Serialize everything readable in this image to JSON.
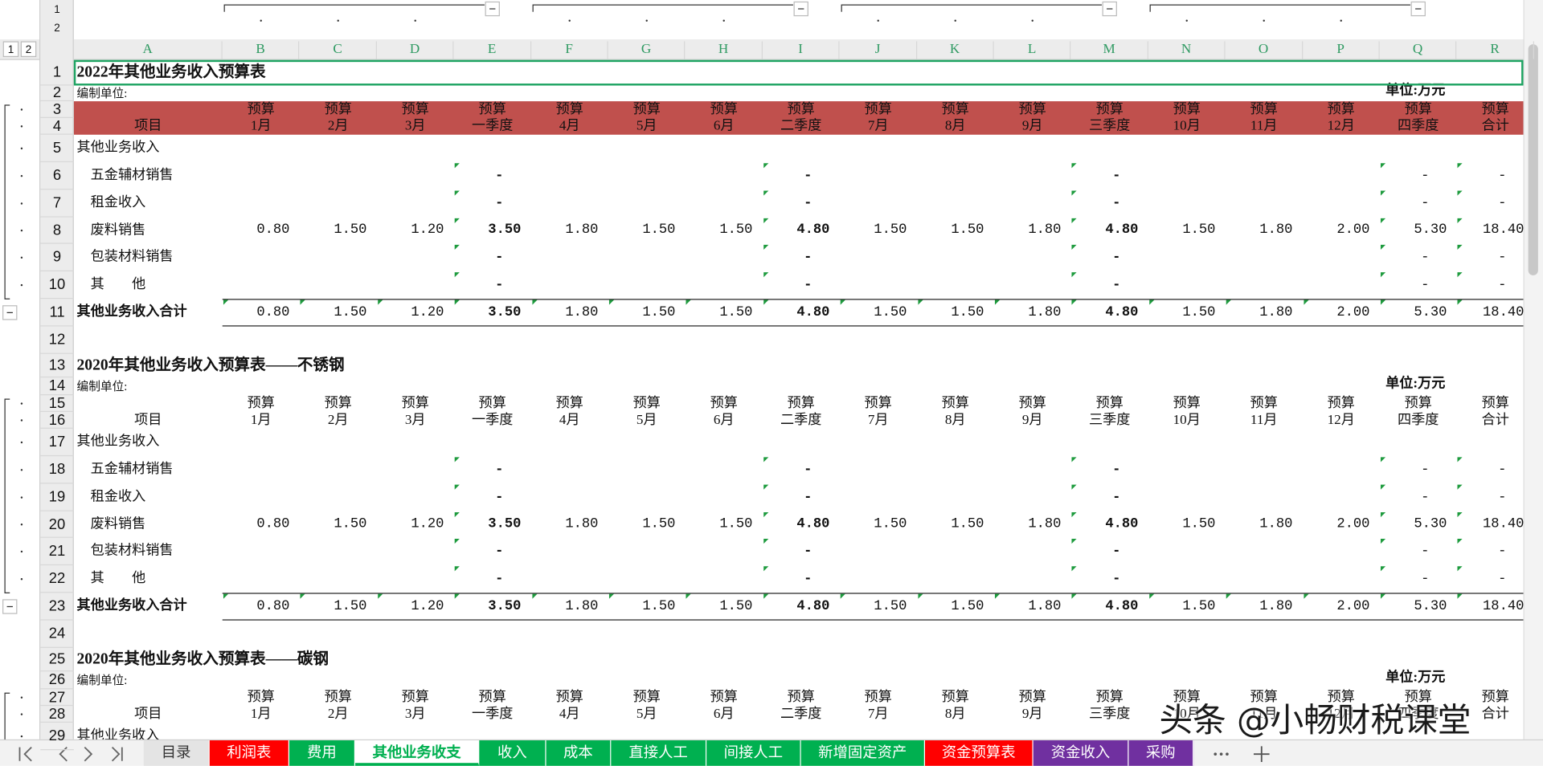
{
  "column_letters": [
    "A",
    "B",
    "C",
    "D",
    "E",
    "F",
    "G",
    "H",
    "I",
    "J",
    "K",
    "L",
    "M",
    "N",
    "O",
    "P",
    "Q",
    "R"
  ],
  "row_numbers": [
    1,
    2,
    3,
    4,
    5,
    6,
    7,
    8,
    9,
    10,
    11,
    12,
    13,
    14,
    15,
    16,
    17,
    18,
    19,
    20,
    21,
    22,
    23,
    24,
    25,
    26,
    27,
    28,
    29
  ],
  "outline_levels": [
    1,
    2
  ],
  "tables": [
    {
      "title": "2022年其他业务收入预算表",
      "unit_label": "编制单位:",
      "unit": "单位:万元",
      "header_fill": "#c0504d",
      "header_top": [
        "预算",
        "预算",
        "预算",
        "预算",
        "预算",
        "预算",
        "预算",
        "预算",
        "预算",
        "预算",
        "预算",
        "预算",
        "预算",
        "预算",
        "预算",
        "预算",
        "预算"
      ],
      "header_bottom": [
        "项目",
        "1月",
        "2月",
        "3月",
        "一季度",
        "4月",
        "5月",
        "6月",
        "二季度",
        "7月",
        "8月",
        "9月",
        "三季度",
        "10月",
        "11月",
        "12月",
        "四季度",
        "合计"
      ],
      "rows": [
        {
          "label": "其他业务收入"
        },
        {
          "label": "五金辅材销售",
          "cells": [
            null,
            null,
            null,
            "-",
            null,
            null,
            null,
            "-",
            null,
            null,
            null,
            "-",
            null,
            null,
            null,
            "-",
            "-"
          ]
        },
        {
          "label": "租金收入",
          "cells": [
            null,
            null,
            null,
            "-",
            null,
            null,
            null,
            "-",
            null,
            null,
            null,
            "-",
            null,
            null,
            null,
            "-",
            "-"
          ]
        },
        {
          "label": "废料销售",
          "cells": [
            "0.80",
            "1.50",
            "1.20",
            "3.50",
            "1.80",
            "1.50",
            "1.50",
            "4.80",
            "1.50",
            "1.50",
            "1.80",
            "4.80",
            "1.50",
            "1.80",
            "2.00",
            "5.30",
            "18.40"
          ]
        },
        {
          "label": "包装材料销售",
          "cells": [
            null,
            null,
            null,
            "-",
            null,
            null,
            null,
            "-",
            null,
            null,
            null,
            "-",
            null,
            null,
            null,
            "-",
            "-"
          ]
        },
        {
          "label": "其　　他",
          "cells": [
            null,
            null,
            null,
            "-",
            null,
            null,
            null,
            "-",
            null,
            null,
            null,
            "-",
            null,
            null,
            null,
            "-",
            "-"
          ]
        }
      ],
      "total": {
        "label": "其他业务收入合计",
        "cells": [
          "0.80",
          "1.50",
          "1.20",
          "3.50",
          "1.80",
          "1.50",
          "1.50",
          "4.80",
          "1.50",
          "1.50",
          "1.80",
          "4.80",
          "1.50",
          "1.80",
          "2.00",
          "5.30",
          "18.40"
        ]
      }
    },
    {
      "title": "2020年其他业务收入预算表——不锈钢",
      "unit_label": "编制单位:",
      "unit": "单位:万元",
      "header_top": [
        "预算",
        "预算",
        "预算",
        "预算",
        "预算",
        "预算",
        "预算",
        "预算",
        "预算",
        "预算",
        "预算",
        "预算",
        "预算",
        "预算",
        "预算",
        "预算",
        "预算"
      ],
      "header_bottom": [
        "项目",
        "1月",
        "2月",
        "3月",
        "一季度",
        "4月",
        "5月",
        "6月",
        "二季度",
        "7月",
        "8月",
        "9月",
        "三季度",
        "10月",
        "11月",
        "12月",
        "四季度",
        "合计"
      ],
      "rows": [
        {
          "label": "其他业务收入"
        },
        {
          "label": "五金辅材销售",
          "cells": [
            null,
            null,
            null,
            "-",
            null,
            null,
            null,
            "-",
            null,
            null,
            null,
            "-",
            null,
            null,
            null,
            "-",
            "-"
          ]
        },
        {
          "label": "租金收入",
          "cells": [
            null,
            null,
            null,
            "-",
            null,
            null,
            null,
            "-",
            null,
            null,
            null,
            "-",
            null,
            null,
            null,
            "-",
            "-"
          ]
        },
        {
          "label": "废料销售",
          "cells": [
            "0.80",
            "1.50",
            "1.20",
            "3.50",
            "1.80",
            "1.50",
            "1.50",
            "4.80",
            "1.50",
            "1.50",
            "1.80",
            "4.80",
            "1.50",
            "1.80",
            "2.00",
            "5.30",
            "18.40"
          ]
        },
        {
          "label": "包装材料销售",
          "cells": [
            null,
            null,
            null,
            "-",
            null,
            null,
            null,
            "-",
            null,
            null,
            null,
            "-",
            null,
            null,
            null,
            "-",
            "-"
          ]
        },
        {
          "label": "其　　他",
          "cells": [
            null,
            null,
            null,
            "-",
            null,
            null,
            null,
            "-",
            null,
            null,
            null,
            "-",
            null,
            null,
            null,
            "-",
            "-"
          ]
        }
      ],
      "total": {
        "label": "其他业务收入合计",
        "cells": [
          "0.80",
          "1.50",
          "1.20",
          "3.50",
          "1.80",
          "1.50",
          "1.50",
          "4.80",
          "1.50",
          "1.50",
          "1.80",
          "4.80",
          "1.50",
          "1.80",
          "2.00",
          "5.30",
          "18.40"
        ]
      }
    },
    {
      "title": "2020年其他业务收入预算表——碳钢",
      "unit_label": "编制单位:",
      "unit": "单位:万元",
      "header_top": [
        "预算",
        "预算",
        "预算",
        "预算",
        "预算",
        "预算",
        "预算",
        "预算",
        "预算",
        "预算",
        "预算",
        "预算",
        "预算",
        "预算",
        "预算",
        "预算",
        "预算"
      ],
      "header_bottom": [
        "项目",
        "1月",
        "2月",
        "3月",
        "一季度",
        "4月",
        "5月",
        "6月",
        "二季度",
        "7月",
        "8月",
        "9月",
        "三季度",
        "10月",
        "11月",
        "12月",
        "四季度",
        "合计"
      ],
      "rows": [
        {
          "label": "其他业务收入"
        }
      ]
    }
  ],
  "sheet_tabs": [
    {
      "name": "目录",
      "color": "#e4e4e4"
    },
    {
      "name": "利润表",
      "color": "#ff0000"
    },
    {
      "name": "费用",
      "color": "#00b050"
    },
    {
      "name": "其他业务收支",
      "color": "#00b050",
      "active": true
    },
    {
      "name": "收入",
      "color": "#00b050"
    },
    {
      "name": "成本",
      "color": "#00b050"
    },
    {
      "name": "直接人工",
      "color": "#00b050"
    },
    {
      "name": "间接人工",
      "color": "#00b050"
    },
    {
      "name": "新增固定资产",
      "color": "#00b050"
    },
    {
      "name": "资金预算表",
      "color": "#ff0000"
    },
    {
      "name": "资金收入",
      "color": "#7030a0"
    },
    {
      "name": "采购",
      "color": "#7030a0"
    }
  ],
  "watermark": "头条 @小畅财税课堂"
}
